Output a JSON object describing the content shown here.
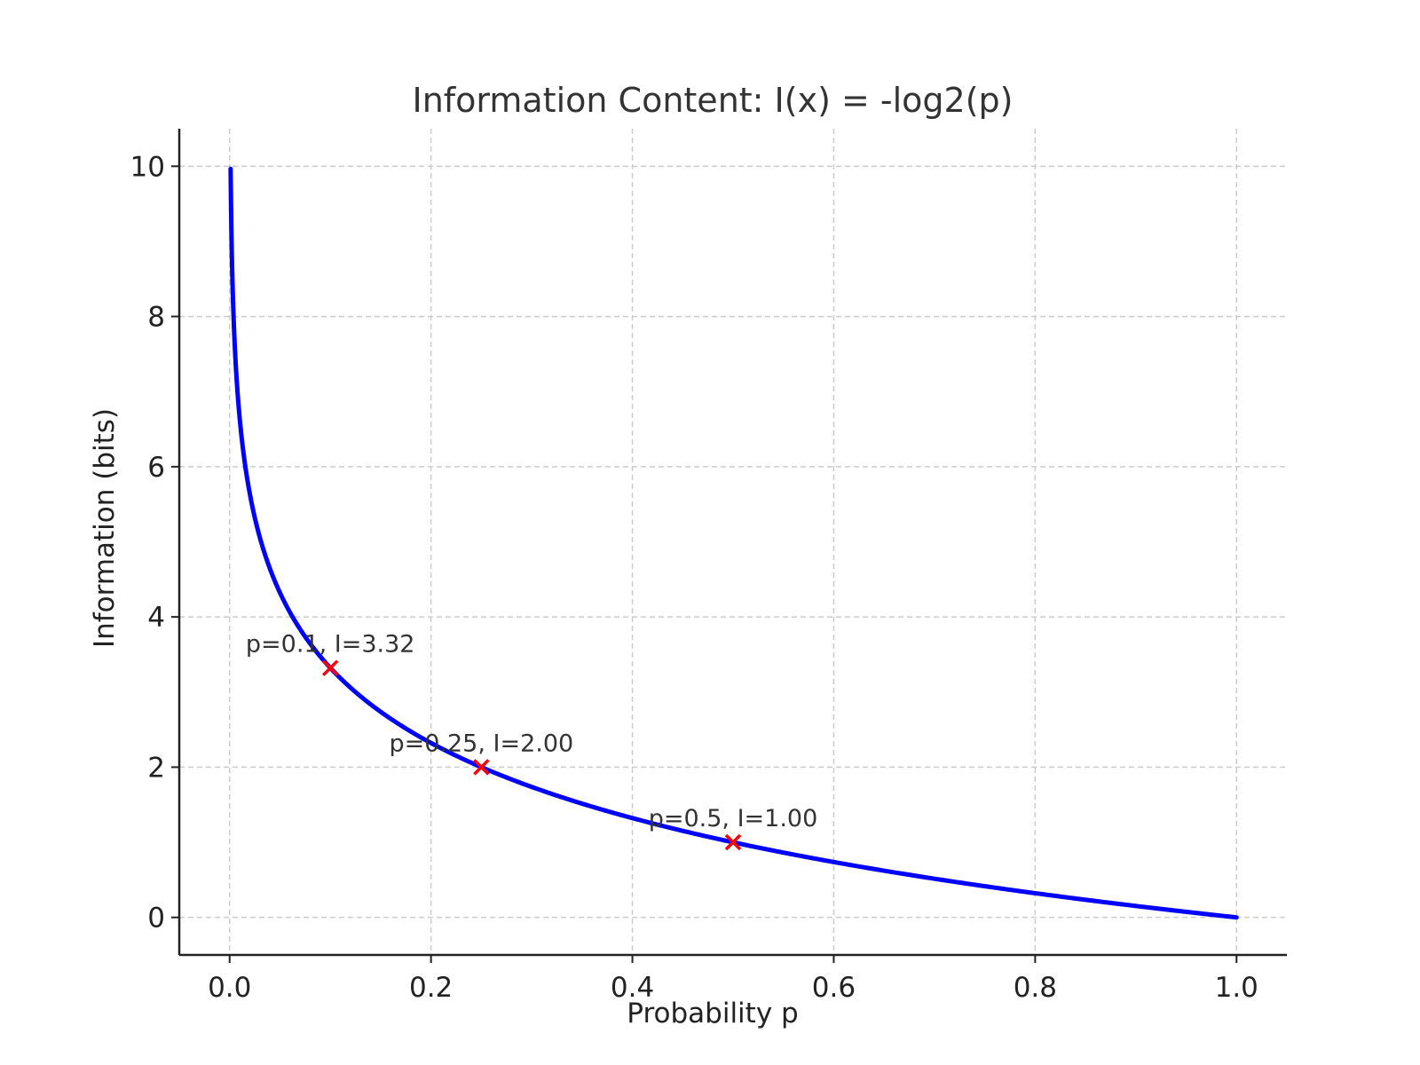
{
  "chart_data": {
    "type": "line",
    "title": "Information Content: I(x) = -log2(p)",
    "xlabel": "Probability p",
    "ylabel": "Information (bits)",
    "xlim": [
      -0.05,
      1.05
    ],
    "ylim": [
      -0.5,
      10.5
    ],
    "xticks": [
      0.0,
      0.2,
      0.4,
      0.6,
      0.8,
      1.0
    ],
    "xtick_labels": [
      "0.0",
      "0.2",
      "0.4",
      "0.6",
      "0.8",
      "1.0"
    ],
    "yticks": [
      0,
      2,
      4,
      6,
      8,
      10
    ],
    "ytick_labels": [
      "0",
      "2",
      "4",
      "6",
      "8",
      "10"
    ],
    "grid": true,
    "curve": {
      "function": "-log2(p)",
      "color": "#0000ff",
      "x_range": [
        0.001,
        1.0
      ]
    },
    "points": [
      {
        "x": 0.1,
        "y": 3.32,
        "label": "p=0.1, I=3.32"
      },
      {
        "x": 0.25,
        "y": 2.0,
        "label": "p=0.25, I=2.00"
      },
      {
        "x": 0.5,
        "y": 1.0,
        "label": "p=0.5, I=1.00"
      }
    ],
    "marker_color": "#ff0000"
  }
}
